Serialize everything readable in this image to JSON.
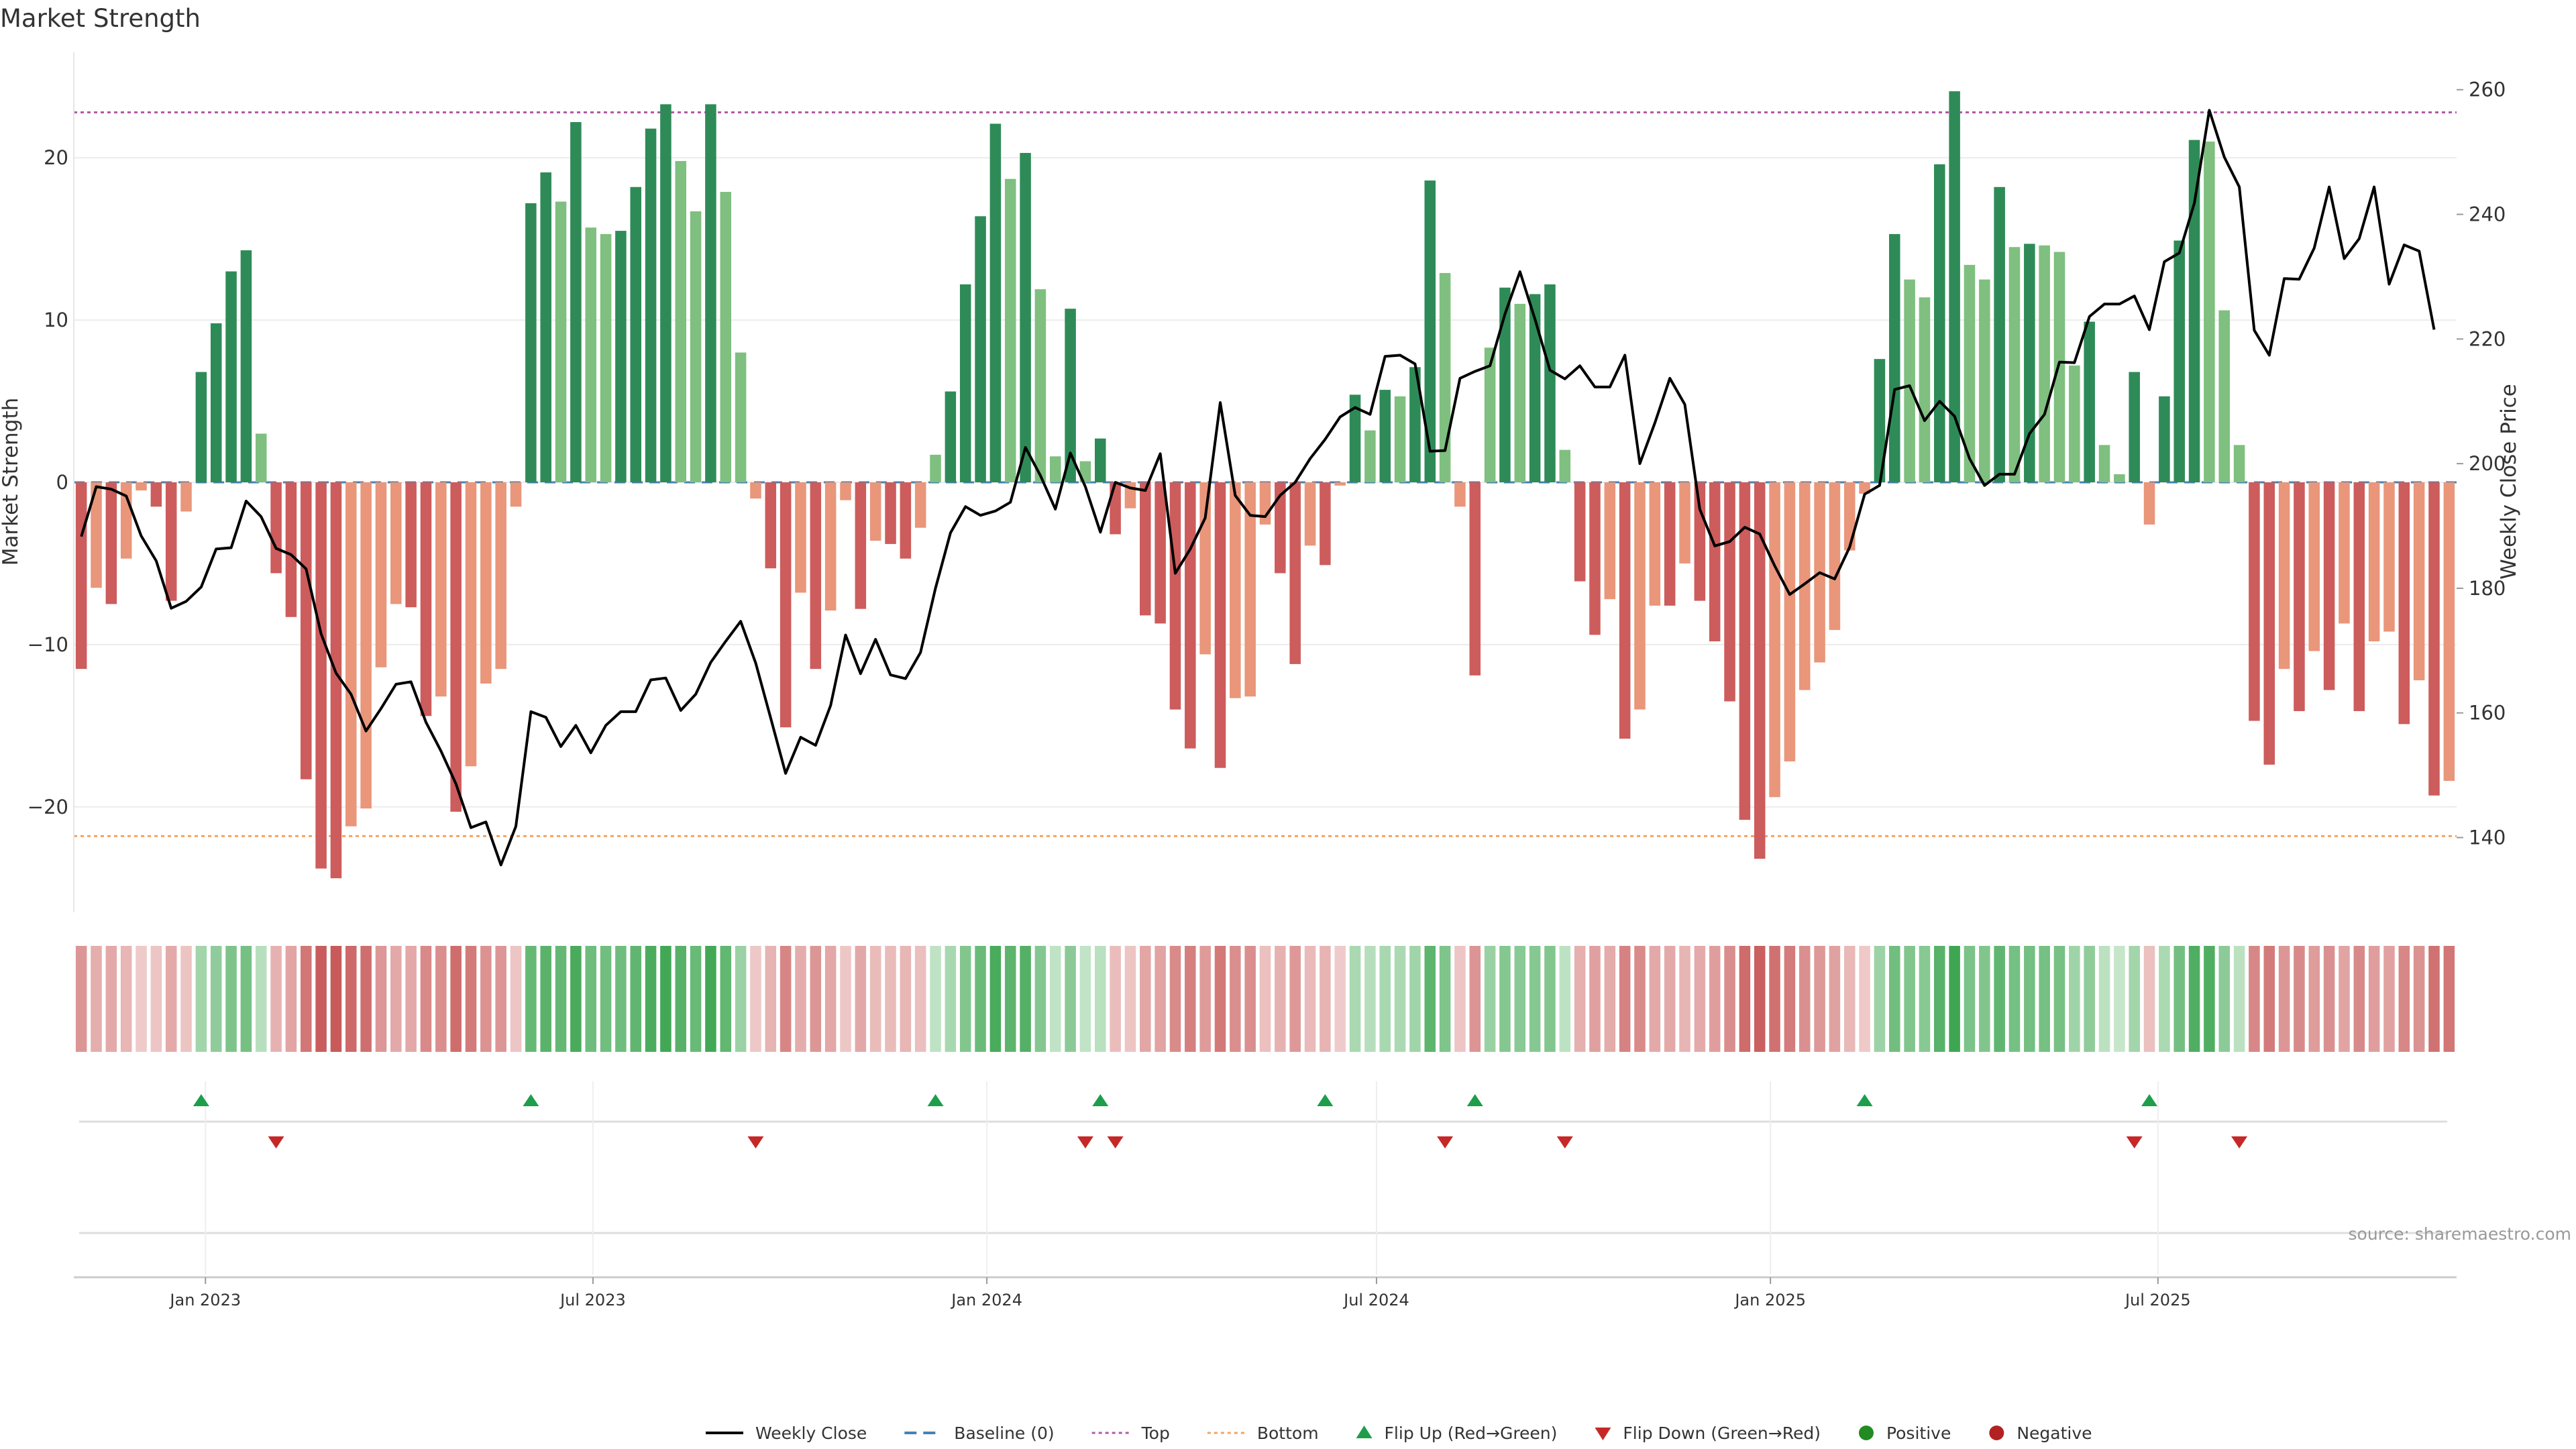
{
  "chart_data": {
    "type": "bar",
    "title": "Market Strength",
    "ylabel": "Market Strength",
    "y2label": "Weekly Close Price",
    "ylim": [
      -26.5,
      26.5
    ],
    "y2lim": [
      128,
      266
    ],
    "yticks": [
      -20,
      -10,
      0,
      10,
      20
    ],
    "y2ticks": [
      140,
      160,
      180,
      200,
      220,
      240,
      260
    ],
    "top_level": 22.8,
    "bottom_level": -21.8,
    "start_date": "2022-11-04",
    "x_tick_dates": [
      "2023-01-01",
      "2023-07-01",
      "2024-01-01",
      "2024-07-01",
      "2025-01-01",
      "2025-07-01"
    ],
    "x_tick_labels": [
      "Jan 2023",
      "Jul 2023",
      "Jan 2024",
      "Jul 2024",
      "Jan 2025",
      "Jul 2025"
    ],
    "strength": [
      -11.5,
      -6.5,
      -7.5,
      -4.7,
      -0.5,
      -1.5,
      -7.3,
      -1.8,
      6.8,
      9.8,
      13.0,
      14.3,
      3.0,
      -5.6,
      -8.3,
      -18.3,
      -23.8,
      -24.4,
      -21.2,
      -20.1,
      -11.4,
      -7.5,
      -7.7,
      -14.4,
      -13.2,
      -20.3,
      -17.5,
      -12.4,
      -11.5,
      -1.5,
      17.2,
      19.1,
      17.3,
      22.2,
      15.7,
      15.3,
      15.5,
      18.2,
      21.8,
      23.3,
      19.8,
      16.7,
      23.3,
      17.9,
      8.0,
      -1.0,
      -5.3,
      -15.1,
      -6.8,
      -11.5,
      -7.9,
      -1.1,
      -7.8,
      -3.6,
      -3.8,
      -4.7,
      -2.8,
      1.7,
      5.6,
      12.2,
      16.4,
      22.1,
      18.7,
      20.3,
      11.9,
      1.6,
      10.7,
      1.3,
      2.7,
      -3.2,
      -1.6,
      -8.2,
      -8.7,
      -14.0,
      -16.4,
      -10.6,
      -17.6,
      -13.3,
      -13.2,
      -2.6,
      -5.6,
      -11.2,
      -3.9,
      -5.1,
      -0.2,
      5.4,
      3.2,
      5.7,
      5.3,
      7.1,
      18.6,
      12.9,
      -1.5,
      -11.9,
      8.3,
      12.0,
      11.0,
      11.6,
      12.2,
      2.0,
      -6.1,
      -9.4,
      -7.2,
      -15.8,
      -14.0,
      -7.6,
      -7.6,
      -5.0,
      -7.3,
      -9.8,
      -13.5,
      -20.8,
      -23.2,
      -19.4,
      -17.2,
      -12.8,
      -11.1,
      -9.1,
      -4.2,
      -0.7,
      7.6,
      15.3,
      12.5,
      11.4,
      19.6,
      24.1,
      13.4,
      12.5,
      18.2,
      14.5,
      14.7,
      14.6,
      14.2,
      7.2,
      9.9,
      2.3,
      0.5,
      6.8,
      -2.6,
      5.3,
      14.9,
      21.1,
      21.0,
      10.6,
      2.3,
      -14.7,
      -17.4,
      -11.5,
      -14.1,
      -10.4,
      -12.8,
      -8.7,
      -14.1,
      -9.8,
      -9.2,
      -14.9,
      -12.2,
      -19.3,
      -18.4
    ],
    "close": [
      188.3,
      196.3,
      195.9,
      194.8,
      188.4,
      184.4,
      176.8,
      177.9,
      180.2,
      186.3,
      186.5,
      194.0,
      191.5,
      186.4,
      185.4,
      183.1,
      172.7,
      166.4,
      163.0,
      157.1,
      160.7,
      164.6,
      165.0,
      158.5,
      153.9,
      148.6,
      141.6,
      142.5,
      135.6,
      141.8,
      160.2,
      159.3,
      154.6,
      158.0,
      153.6,
      158.0,
      160.2,
      160.2,
      165.3,
      165.6,
      160.4,
      163.0,
      168.1,
      171.5,
      174.7,
      168.0,
      159.2,
      150.3,
      156.1,
      154.8,
      161.2,
      172.5,
      166.3,
      171.8,
      166.1,
      165.5,
      169.7,
      180.0,
      188.9,
      193.1,
      191.7,
      192.4,
      193.8,
      202.6,
      198.1,
      192.7,
      201.7,
      196.3,
      189.0,
      197.0,
      196.1,
      195.7,
      201.6,
      182.4,
      186.3,
      191.3,
      209.8,
      194.9,
      191.7,
      191.5,
      194.9,
      197.0,
      200.8,
      203.9,
      207.5,
      209.0,
      207.9,
      217.2,
      217.4,
      216.0,
      202.0,
      202.1,
      213.7,
      214.8,
      215.7,
      224.0,
      230.8,
      223.2,
      215.0,
      213.6,
      215.7,
      212.3,
      212.3,
      217.4,
      200.0,
      206.5,
      213.7,
      209.5,
      192.7,
      186.8,
      187.5,
      189.8,
      188.7,
      183.6,
      179.0,
      180.7,
      182.5,
      181.5,
      186.6,
      195.1,
      196.5,
      211.9,
      212.5,
      206.9,
      210.0,
      207.6,
      200.8,
      196.5,
      198.3,
      198.3,
      204.8,
      207.9,
      216.3,
      216.2,
      223.6,
      225.6,
      225.6,
      226.9,
      221.5,
      232.4,
      233.8,
      241.8,
      256.7,
      249.2,
      244.4,
      221.4,
      217.4,
      229.7,
      229.6,
      234.6,
      244.4,
      232.9,
      236.1,
      244.4,
      228.8,
      235.1,
      234.1,
      221.5
    ],
    "flip_up_indices": [
      8,
      30,
      57,
      68,
      83,
      93,
      119,
      138
    ],
    "flip_down_indices": [
      13,
      45,
      67,
      69,
      91,
      99,
      137,
      144
    ],
    "legend": [
      {
        "label": "Weekly Close",
        "marker": "line"
      },
      {
        "label": "Baseline (0)",
        "marker": "dash"
      },
      {
        "label": "Top",
        "marker": "dot-purple"
      },
      {
        "label": "Bottom",
        "marker": "dot-orange"
      },
      {
        "label": "Flip Up (Red→Green)",
        "marker": "triangle-up"
      },
      {
        "label": "Flip Down (Green→Red)",
        "marker": "triangle-down"
      },
      {
        "label": "Positive",
        "marker": "circle-green"
      },
      {
        "label": "Negative",
        "marker": "circle-red"
      }
    ],
    "source": "source: sharemaestro.com"
  },
  "colors": {
    "pos_strong": "#2e8b57",
    "pos_light": "#7fbf7f",
    "neg_strong": "#cd5c5c",
    "neg_light": "#e9967a",
    "close_line": "#000000",
    "baseline": "#4682b4",
    "top": "#b05aa8",
    "bottom": "#f4a460",
    "flip_up": "#1e9e4a",
    "flip_down": "#c62828",
    "positive_dot": "#228b22",
    "negative_dot": "#b22222"
  }
}
